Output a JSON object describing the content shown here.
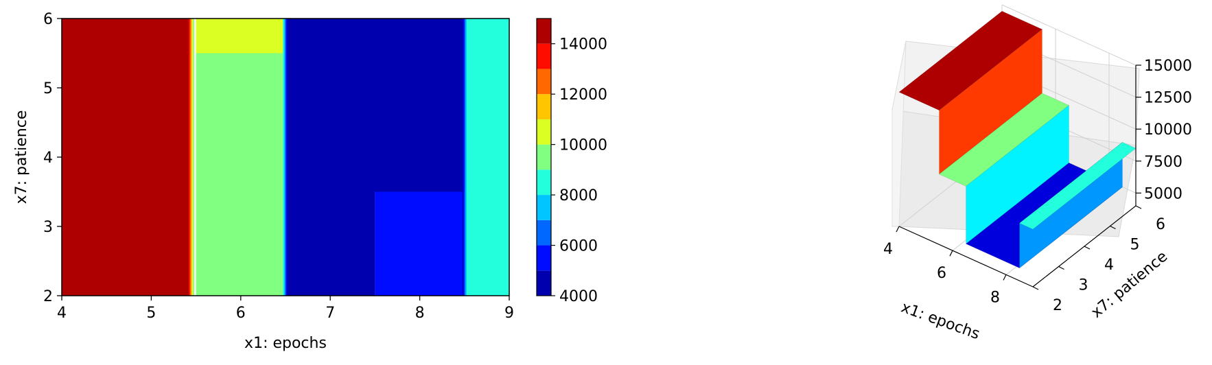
{
  "chart_data": [
    {
      "type": "heatmap",
      "subtype": "filled-contour",
      "xlabel": "x1: epochs",
      "ylabel": "x7: patience",
      "xlim": [
        4,
        9
      ],
      "ylim": [
        2,
        6
      ],
      "xticks": [
        "4",
        "5",
        "6",
        "7",
        "8",
        "9"
      ],
      "yticks": [
        "2",
        "3",
        "4",
        "5",
        "6"
      ],
      "colormap": "jet",
      "colorbar": {
        "range": [
          4000,
          15000
        ],
        "levels": [
          4000,
          5000,
          6000,
          7000,
          8000,
          9000,
          10000,
          11000,
          12000,
          13000,
          14000,
          15000
        ],
        "ticks": [
          "4000",
          "6000",
          "8000",
          "10000",
          "12000",
          "14000"
        ]
      },
      "regions": [
        {
          "x": [
            4.0,
            5.45
          ],
          "y": [
            2.0,
            6.0
          ],
          "value": 14500
        },
        {
          "x": [
            5.5,
            6.5
          ],
          "y": [
            5.5,
            6.0
          ],
          "value": 10500
        },
        {
          "x": [
            5.5,
            6.5
          ],
          "y": [
            2.0,
            5.5
          ],
          "value": 9500
        },
        {
          "x": [
            6.5,
            9.0
          ],
          "y": [
            3.5,
            6.0
          ],
          "value": 4500
        },
        {
          "x": [
            6.5,
            7.5
          ],
          "y": [
            2.0,
            3.5
          ],
          "value": 4500
        },
        {
          "x": [
            7.5,
            8.5
          ],
          "y": [
            2.0,
            3.5
          ],
          "value": 5500
        },
        {
          "x": [
            8.5,
            9.0
          ],
          "y": [
            2.0,
            6.0
          ],
          "value": 8500
        }
      ]
    },
    {
      "type": "surface3d",
      "colormap": "jet",
      "xlabel": "x1: epochs",
      "ylabel": "x7: patience",
      "xlim": [
        4,
        9
      ],
      "ylim": [
        2,
        6
      ],
      "zlim": [
        4000,
        15000
      ],
      "xticks": [
        "4",
        "6",
        "8"
      ],
      "yticks": [
        "2",
        "3",
        "4",
        "5",
        "6"
      ],
      "zticks": [
        "5000",
        "7500",
        "10000",
        "12500",
        "15000"
      ],
      "steps": [
        {
          "x": [
            4.0,
            5.5
          ],
          "value": 14500
        },
        {
          "x": [
            5.5,
            6.5
          ],
          "value": 9500
        },
        {
          "x": [
            6.5,
            8.5
          ],
          "value": 5000
        },
        {
          "x": [
            8.5,
            9.0
          ],
          "value": 8500
        }
      ]
    }
  ]
}
